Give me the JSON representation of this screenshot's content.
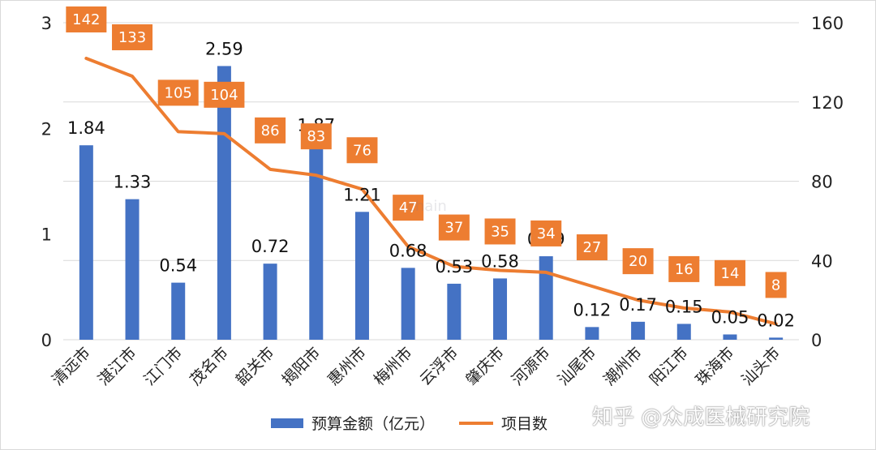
{
  "chart_data": {
    "type": "bar",
    "categories": [
      "清远市",
      "湛江市",
      "江门市",
      "茂名市",
      "韶关市",
      "揭阳市",
      "惠州市",
      "梅州市",
      "云浮市",
      "肇庆市",
      "河源市",
      "汕尾市",
      "潮州市",
      "阳江市",
      "珠海市",
      "汕头市"
    ],
    "series": [
      {
        "name": "预算金额（亿元）",
        "type": "bar",
        "axis": "left",
        "color": "#4472C4",
        "values": [
          1.84,
          1.33,
          0.54,
          2.59,
          0.72,
          1.87,
          1.21,
          0.68,
          0.53,
          0.58,
          0.79,
          0.12,
          0.17,
          0.15,
          0.05,
          0.02
        ]
      },
      {
        "name": "项目数",
        "type": "line",
        "axis": "right",
        "color": "#ED7D31",
        "values": [
          142,
          133,
          105,
          104,
          86,
          83,
          76,
          47,
          37,
          35,
          34,
          27,
          20,
          16,
          14,
          8
        ]
      }
    ],
    "y_left": {
      "min": 0,
      "max": 3,
      "ticks": [
        "0",
        "1",
        "2",
        "3"
      ]
    },
    "y_right": {
      "min": 0,
      "max": 160,
      "ticks": [
        "0",
        "40",
        "80",
        "120",
        "160"
      ]
    },
    "grid": true,
    "legend": "bottom"
  },
  "watermark": "知乎 @众成医械研究院",
  "faint_watermark": "chain"
}
